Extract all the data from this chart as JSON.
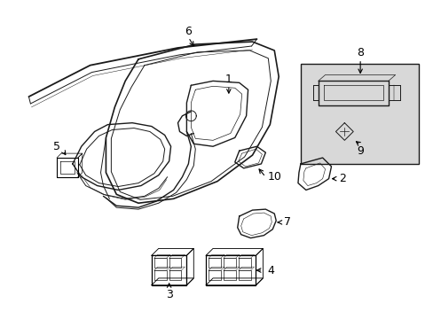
{
  "background_color": "#ffffff",
  "line_color": "#1a1a1a",
  "fig_width": 4.89,
  "fig_height": 3.6,
  "dpi": 100,
  "inset_color": "#d8d8d8"
}
